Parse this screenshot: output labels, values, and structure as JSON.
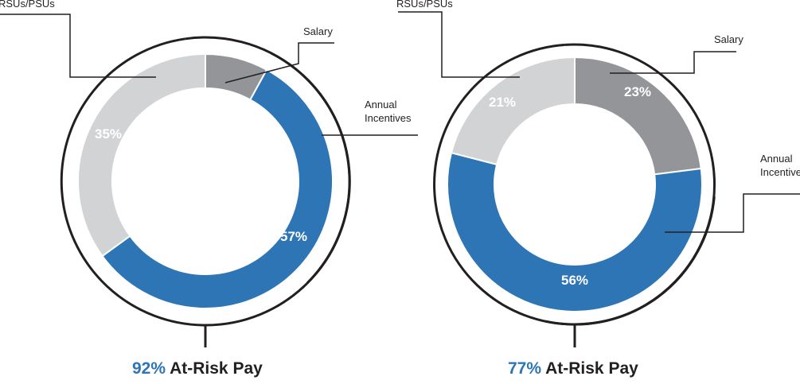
{
  "chart_data": [
    {
      "type": "pie",
      "variant": "donut",
      "slices": [
        {
          "label": "Salary",
          "value": 8,
          "value_label": "8%",
          "color": "#939598",
          "label_color": "#ffffff"
        },
        {
          "label": "Annual\nIncentives",
          "value": 57,
          "value_label": "57%",
          "color": "#2e75b6",
          "label_color": "#ffffff"
        },
        {
          "label": "RSUs/PSUs",
          "value": 35,
          "value_label": "35%",
          "color": "#d1d3d4",
          "label_color": "#ffffff"
        }
      ],
      "at_risk": {
        "percent_label": "92%",
        "text": "At-Risk Pay",
        "value": 92
      }
    },
    {
      "type": "pie",
      "variant": "donut",
      "slices": [
        {
          "label": "Salary",
          "value": 23,
          "value_label": "23%",
          "color": "#939598",
          "label_color": "#ffffff"
        },
        {
          "label": "Annual\nIncentives",
          "value": 56,
          "value_label": "56%",
          "color": "#2e75b6",
          "label_color": "#ffffff"
        },
        {
          "label": "RSUs/PSUs",
          "value": 21,
          "value_label": "21%",
          "color": "#d1d3d4",
          "label_color": "#ffffff"
        }
      ],
      "at_risk": {
        "percent_label": "77%",
        "text": "At-Risk Pay",
        "value": 77
      }
    }
  ],
  "colors": {
    "text": "#231f20",
    "accent": "#2e75b6",
    "bracket": "#231f20"
  }
}
